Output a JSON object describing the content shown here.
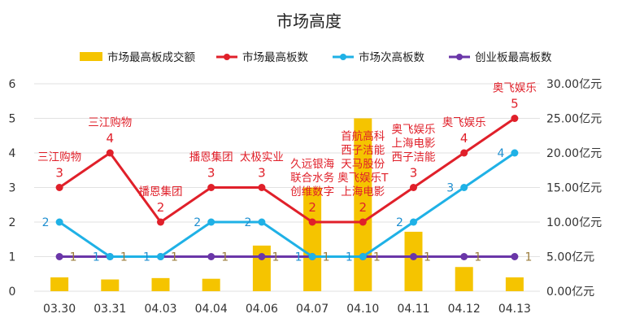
{
  "chart_data": {
    "type": "bar+line",
    "title": "市场高度",
    "categories": [
      "03.30",
      "03.31",
      "04.03",
      "04.04",
      "04.06",
      "04.07",
      "04.10",
      "04.11",
      "04.12",
      "04.13"
    ],
    "bar_series": {
      "name": "市场最高板成交额",
      "values": [
        2.0,
        1.7,
        1.9,
        1.8,
        6.6,
        15.0,
        25.0,
        8.6,
        3.5,
        2.0
      ],
      "color": "#F5C400"
    },
    "line_series": [
      {
        "name": "市场最高板数",
        "values": [
          3,
          4,
          2,
          3,
          3,
          2,
          2,
          3,
          4,
          5
        ],
        "color": "#E0202A",
        "label_color": "#E0202A",
        "annotations": [
          [
            "三江购物"
          ],
          [
            "三江购物"
          ],
          [
            "播恩集团"
          ],
          [
            "播恩集团"
          ],
          [
            "太极实业"
          ],
          [
            "久远银海",
            "联合水务",
            "创维数字"
          ],
          [
            "首航高科",
            "西子洁能",
            "天马股份",
            "奥飞娱乐T",
            "上海电影"
          ],
          [
            "奥飞娱乐",
            "上海电影",
            "西子洁能"
          ],
          [
            "奥飞娱乐"
          ],
          [
            "奥飞娱乐"
          ]
        ]
      },
      {
        "name": "市场次高板数",
        "values": [
          2,
          1,
          1,
          2,
          2,
          1,
          1,
          2,
          3,
          4
        ],
        "color": "#1FB1E6",
        "label_color": "#1F8FD0"
      },
      {
        "name": "创业板最高板数",
        "values": [
          1,
          1,
          1,
          1,
          1,
          1,
          1,
          1,
          1,
          1
        ],
        "color": "#6A36A8",
        "label_color": "#9A7B3A"
      }
    ],
    "left_axis": {
      "min": 0,
      "max": 6,
      "ticks": [
        "0",
        "1",
        "2",
        "3",
        "4",
        "5",
        "6"
      ]
    },
    "right_axis": {
      "min": 0,
      "max": 30,
      "ticks": [
        "0.00亿元",
        "5.00亿元",
        "10.00亿元",
        "15.00亿元",
        "20.00亿元",
        "25.00亿元",
        "30.00亿元"
      ]
    },
    "legend_position": "top",
    "grid": true
  }
}
